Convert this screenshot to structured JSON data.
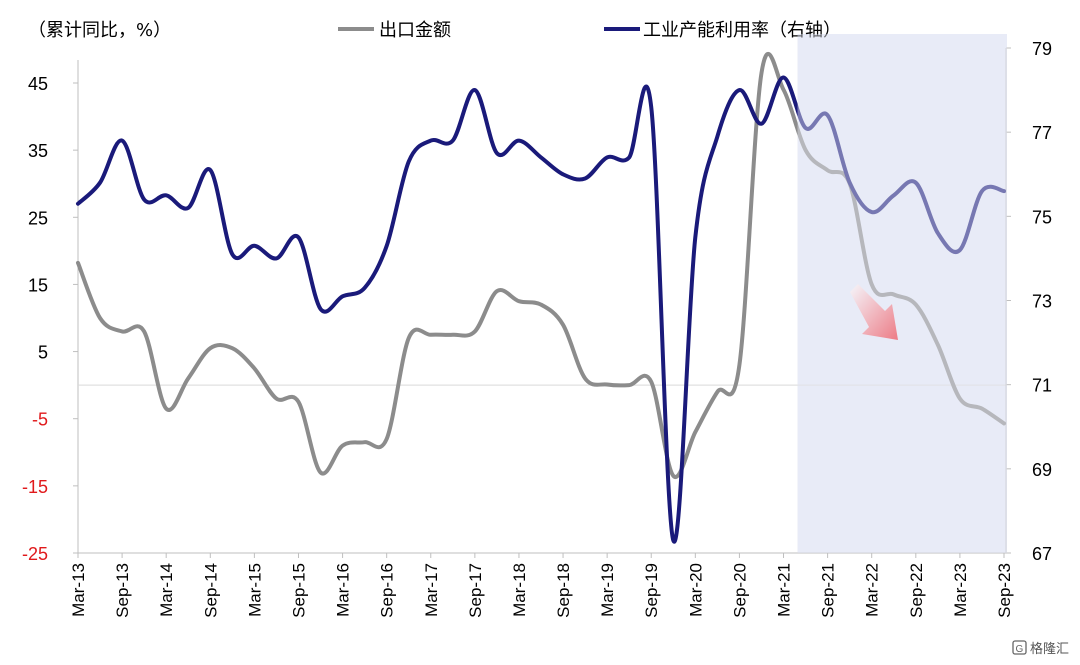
{
  "chart_data": {
    "type": "line",
    "y_left_label": "（累计同比，%）",
    "y_left_ticks": [
      45,
      35,
      25,
      15,
      5,
      -5,
      -15,
      -25
    ],
    "y_left_range": [
      -25,
      50
    ],
    "y_right_ticks": [
      79,
      77,
      75,
      73,
      71,
      69,
      67
    ],
    "y_right_range": [
      67,
      79
    ],
    "x_tick_labels": [
      "Mar-13",
      "Sep-13",
      "Mar-14",
      "Sep-14",
      "Mar-15",
      "Sep-15",
      "Mar-16",
      "Sep-16",
      "Mar-17",
      "Sep-17",
      "Mar-18",
      "Sep-18",
      "Mar-19",
      "Sep-19",
      "Mar-20",
      "Sep-20",
      "Mar-21",
      "Sep-21",
      "Mar-22",
      "Sep-22",
      "Mar-23",
      "Sep-23"
    ],
    "highlight_region": {
      "from": "Mar-21",
      "to": "Sep-23"
    },
    "series": [
      {
        "name": "出口金额",
        "axis": "left",
        "color": "#8c8c8c",
        "x": [
          "Mar-13",
          "Jun-13",
          "Sep-13",
          "Dec-13",
          "Mar-14",
          "Jun-14",
          "Sep-14",
          "Dec-14",
          "Mar-15",
          "Jun-15",
          "Sep-15",
          "Dec-15",
          "Mar-16",
          "Jun-16",
          "Sep-16",
          "Dec-16",
          "Mar-17",
          "Jun-17",
          "Sep-17",
          "Dec-17",
          "Mar-18",
          "Jun-18",
          "Sep-18",
          "Dec-18",
          "Mar-19",
          "Jun-19",
          "Sep-19",
          "Dec-19",
          "Mar-20",
          "Jun-20",
          "Sep-20",
          "Dec-20",
          "Mar-21",
          "Jun-21",
          "Sep-21",
          "Dec-21",
          "Mar-22",
          "Jun-22",
          "Sep-22",
          "Dec-22",
          "Mar-23",
          "Jun-23",
          "Sep-23"
        ],
        "values": [
          18.2,
          10,
          8,
          8,
          -3.5,
          1,
          5.5,
          5.5,
          2.5,
          -2,
          -2.5,
          -13,
          -9,
          -8.5,
          -8,
          7,
          7.5,
          7.5,
          8,
          14,
          12.5,
          12,
          9,
          1,
          0.1,
          0,
          0.5,
          -13.5,
          -7,
          -1,
          3,
          46.5,
          44,
          35,
          32,
          30,
          15,
          13.5,
          12,
          6,
          -2,
          -3.5,
          -5.7
        ]
      },
      {
        "name": "工业产能利用率（右轴）",
        "axis": "right",
        "color": "#1a1a7a",
        "x": [
          "Mar-13",
          "Jun-13",
          "Sep-13",
          "Dec-13",
          "Mar-14",
          "Jun-14",
          "Sep-14",
          "Dec-14",
          "Mar-15",
          "Jun-15",
          "Sep-15",
          "Dec-15",
          "Mar-16",
          "Jun-16",
          "Sep-16",
          "Dec-16",
          "Mar-17",
          "Jun-17",
          "Sep-17",
          "Dec-17",
          "Mar-18",
          "Jun-18",
          "Sep-18",
          "Dec-18",
          "Mar-19",
          "Jun-19",
          "Sep-19",
          "Dec-19",
          "Mar-20",
          "Jun-20",
          "Sep-20",
          "Dec-20",
          "Mar-21",
          "Jun-21",
          "Sep-21",
          "Dec-21",
          "Mar-22",
          "Jun-22",
          "Sep-22",
          "Dec-22",
          "Mar-23",
          "Jun-23",
          "Sep-23"
        ],
        "values": [
          75.3,
          75.8,
          76.8,
          75.4,
          75.5,
          75.2,
          76.1,
          74.1,
          74.3,
          74.0,
          74.5,
          72.8,
          73.1,
          73.3,
          74.3,
          76.3,
          76.8,
          76.8,
          78.0,
          76.5,
          76.8,
          76.4,
          76.0,
          75.9,
          76.4,
          76.4,
          77.6,
          67.3,
          74.5,
          76.9,
          78.0,
          77.2,
          78.3,
          77.1,
          77.4,
          75.8,
          75.1,
          75.5,
          75.8,
          74.6,
          74.2,
          75.6,
          75.6
        ]
      }
    ]
  },
  "watermark": "格隆汇"
}
